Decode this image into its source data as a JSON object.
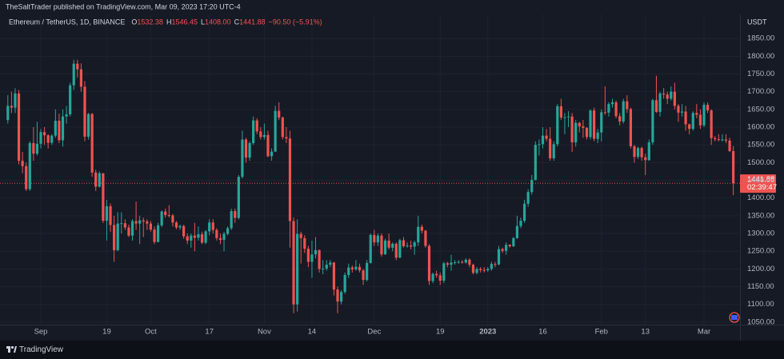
{
  "header": {
    "publisher": "TheSaltTrader published on TradingView.com, Mar 09, 2023 17:20 UTC-4"
  },
  "footer": {
    "brand": "TradingView"
  },
  "chart_data": {
    "type": "candlestick",
    "symbol": "Ethereum / TetherUS, 1D, BINANCE",
    "ohlc_legend": [
      {
        "key": "O",
        "value": "1532.38"
      },
      {
        "key": "H",
        "value": "1546.45"
      },
      {
        "key": "L",
        "value": "1408.00"
      },
      {
        "key": "C",
        "value": "1441.88"
      }
    ],
    "change": "−90.50 (−5.91%)",
    "countdown": "02:39:47",
    "y_unit": "USDT",
    "up_color": "#26a69a",
    "down_color": "#ef5350",
    "grid": true,
    "ylim": [
      1043,
      1918
    ],
    "yticks": [
      {
        "value": 1050,
        "label": "1050.00"
      },
      {
        "value": 1100,
        "label": "1100.00"
      },
      {
        "value": 1150,
        "label": "1150.00"
      },
      {
        "value": 1200,
        "label": "1200.00"
      },
      {
        "value": 1250,
        "label": "1250.00"
      },
      {
        "value": 1300,
        "label": "1300.00"
      },
      {
        "value": 1350,
        "label": "1350.00"
      },
      {
        "value": 1400,
        "label": "1400.00"
      },
      {
        "value": 1450,
        "label": "1450.00"
      },
      {
        "value": 1500,
        "label": "1500.00"
      },
      {
        "value": 1550,
        "label": "1550.00"
      },
      {
        "value": 1600,
        "label": "1600.00"
      },
      {
        "value": 1650,
        "label": "1650.00"
      },
      {
        "value": 1700,
        "label": "1700.00"
      },
      {
        "value": 1750,
        "label": "1750.00"
      },
      {
        "value": 1800,
        "label": "1800.00"
      },
      {
        "value": 1850,
        "label": "1850.00"
      }
    ],
    "categories": [
      null,
      null,
      null,
      null,
      null,
      null,
      null,
      null,
      null,
      "Sep",
      null,
      null,
      null,
      null,
      null,
      null,
      null,
      null,
      null,
      null,
      null,
      null,
      null,
      null,
      null,
      null,
      null,
      "19",
      null,
      null,
      null,
      null,
      null,
      null,
      null,
      null,
      null,
      null,
      null,
      "Oct",
      null,
      null,
      null,
      null,
      null,
      null,
      null,
      null,
      null,
      null,
      null,
      null,
      null,
      null,
      null,
      "17",
      null,
      null,
      null,
      null,
      null,
      null,
      null,
      null,
      null,
      null,
      null,
      null,
      null,
      null,
      "Nov",
      null,
      null,
      null,
      null,
      null,
      null,
      null,
      null,
      null,
      null,
      null,
      null,
      "14",
      null,
      null,
      null,
      null,
      null,
      null,
      null,
      null,
      null,
      null,
      null,
      null,
      null,
      null,
      null,
      null,
      "Dec",
      null,
      null,
      null,
      null,
      null,
      null,
      null,
      null,
      null,
      null,
      null,
      null,
      null,
      null,
      null,
      null,
      null,
      "19",
      null,
      null,
      null,
      null,
      null,
      null,
      null,
      null,
      null,
      null,
      null,
      null,
      "2023",
      null,
      null,
      null,
      null,
      null,
      null,
      null,
      null,
      null,
      null,
      null,
      null,
      null,
      null,
      "16",
      null,
      null,
      null,
      null,
      null,
      null,
      null,
      null,
      null,
      null,
      null,
      null,
      null,
      null,
      null,
      "Feb",
      null,
      null,
      null,
      null,
      null,
      null,
      null,
      null,
      null,
      null,
      null,
      "13",
      null,
      null,
      null,
      null,
      null,
      null,
      null,
      null,
      null,
      null,
      null,
      null,
      null,
      null,
      null,
      "Mar",
      null,
      null,
      null,
      null,
      null,
      null,
      null,
      null
    ],
    "open": [
      1620,
      1660,
      1655,
      1695,
      1505,
      1490,
      1425,
      1555,
      1525,
      1553,
      1586,
      1577,
      1556,
      1576,
      1618,
      1563,
      1630,
      1636,
      1718,
      1779,
      1763,
      1714,
      1573,
      1637,
      1472,
      1432,
      1470,
      1336,
      1377,
      1324,
      1253,
      1328,
      1329,
      1317,
      1294,
      1335,
      1328,
      1337,
      1334,
      1328,
      1311,
      1276,
      1323,
      1362,
      1352,
      1351,
      1331,
      1317,
      1321,
      1292,
      1280,
      1294,
      1288,
      1298,
      1274,
      1306,
      1331,
      1310,
      1287,
      1282,
      1299,
      1315,
      1363,
      1344,
      1460,
      1565,
      1514,
      1555,
      1619,
      1588,
      1572,
      1578,
      1518,
      1531,
      1646,
      1627,
      1572,
      1568,
      1335,
      1100,
      1299,
      1287,
      1257,
      1220,
      1241,
      1253,
      1200,
      1201,
      1212,
      1218,
      1142,
      1108,
      1135,
      1183,
      1204,
      1199,
      1206,
      1196,
      1169,
      1217,
      1296,
      1275,
      1294,
      1241,
      1280,
      1260,
      1271,
      1232,
      1281,
      1264,
      1266,
      1263,
      1275,
      1319,
      1308,
      1265,
      1166,
      1186,
      1182,
      1167,
      1216,
      1212,
      1218,
      1219,
      1220,
      1218,
      1226,
      1212,
      1189,
      1200,
      1197,
      1196,
      1200,
      1214,
      1213,
      1256,
      1251,
      1268,
      1264,
      1287,
      1321,
      1336,
      1384,
      1417,
      1451,
      1550,
      1552,
      1576,
      1567,
      1512,
      1552,
      1659,
      1627,
      1628,
      1630,
      1557,
      1612,
      1602,
      1598,
      1572,
      1647,
      1567,
      1585,
      1642,
      1641,
      1665,
      1670,
      1631,
      1616,
      1673,
      1651,
      1546,
      1516,
      1541,
      1515,
      1507,
      1557,
      1676,
      1643,
      1695,
      1692,
      1680,
      1700,
      1660,
      1641,
      1644,
      1608,
      1595,
      1640,
      1635,
      1605,
      1663,
      1647,
      1569,
      1566,
      1564,
      1565,
      1562,
      1532.38
    ],
    "high": [
      1690,
      1700,
      1710,
      1705,
      1530,
      1500,
      1560,
      1600,
      1615,
      1595,
      1600,
      1580,
      1580,
      1650,
      1638,
      1650,
      1660,
      1725,
      1790,
      1790,
      1780,
      1730,
      1640,
      1640,
      1480,
      1475,
      1470,
      1395,
      1385,
      1350,
      1360,
      1360,
      1340,
      1325,
      1340,
      1390,
      1350,
      1345,
      1340,
      1335,
      1320,
      1330,
      1365,
      1370,
      1380,
      1355,
      1335,
      1325,
      1325,
      1300,
      1300,
      1330,
      1320,
      1305,
      1310,
      1340,
      1340,
      1315,
      1300,
      1305,
      1320,
      1370,
      1370,
      1465,
      1590,
      1570,
      1560,
      1630,
      1625,
      1600,
      1610,
      1590,
      1540,
      1660,
      1670,
      1630,
      1600,
      1590,
      1345,
      1340,
      1305,
      1295,
      1265,
      1280,
      1290,
      1255,
      1225,
      1225,
      1225,
      1220,
      1150,
      1140,
      1190,
      1215,
      1210,
      1225,
      1215,
      1200,
      1225,
      1300,
      1310,
      1300,
      1300,
      1285,
      1300,
      1275,
      1275,
      1285,
      1290,
      1275,
      1280,
      1280,
      1350,
      1325,
      1310,
      1270,
      1190,
      1195,
      1190,
      1220,
      1220,
      1240,
      1225,
      1225,
      1225,
      1230,
      1230,
      1215,
      1205,
      1205,
      1205,
      1205,
      1220,
      1220,
      1265,
      1260,
      1275,
      1270,
      1290,
      1350,
      1345,
      1395,
      1425,
      1465,
      1560,
      1565,
      1600,
      1595,
      1600,
      1560,
      1665,
      1680,
      1640,
      1645,
      1640,
      1620,
      1615,
      1620,
      1600,
      1650,
      1655,
      1595,
      1650,
      1715,
      1670,
      1680,
      1675,
      1640,
      1680,
      1690,
      1655,
      1550,
      1545,
      1545,
      1525,
      1565,
      1680,
      1745,
      1700,
      1710,
      1700,
      1715,
      1725,
      1665,
      1665,
      1660,
      1610,
      1645,
      1665,
      1650,
      1670,
      1670,
      1650,
      1575,
      1580,
      1580,
      1580,
      1570,
      1546.45
    ],
    "low": [
      1610,
      1640,
      1640,
      1495,
      1470,
      1420,
      1420,
      1505,
      1520,
      1540,
      1550,
      1540,
      1550,
      1570,
      1555,
      1545,
      1610,
      1630,
      1705,
      1740,
      1700,
      1560,
      1565,
      1460,
      1420,
      1430,
      1330,
      1280,
      1305,
      1220,
      1250,
      1300,
      1310,
      1290,
      1280,
      1310,
      1270,
      1290,
      1310,
      1305,
      1270,
      1275,
      1318,
      1345,
      1345,
      1320,
      1312,
      1310,
      1285,
      1270,
      1260,
      1250,
      1280,
      1270,
      1270,
      1295,
      1300,
      1280,
      1270,
      1250,
      1295,
      1310,
      1330,
      1340,
      1455,
      1500,
      1505,
      1550,
      1580,
      1565,
      1565,
      1515,
      1505,
      1530,
      1620,
      1565,
      1555,
      1260,
      1075,
      1080,
      1215,
      1245,
      1205,
      1175,
      1230,
      1190,
      1185,
      1195,
      1205,
      1125,
      1075,
      1100,
      1130,
      1175,
      1190,
      1195,
      1190,
      1155,
      1165,
      1215,
      1265,
      1265,
      1235,
      1240,
      1255,
      1250,
      1225,
      1230,
      1260,
      1260,
      1255,
      1240,
      1265,
      1300,
      1260,
      1155,
      1160,
      1175,
      1155,
      1160,
      1205,
      1195,
      1212,
      1215,
      1215,
      1215,
      1205,
      1185,
      1185,
      1190,
      1190,
      1192,
      1195,
      1205,
      1210,
      1245,
      1240,
      1260,
      1262,
      1285,
      1315,
      1330,
      1375,
      1410,
      1450,
      1520,
      1540,
      1560,
      1505,
      1505,
      1545,
      1620,
      1580,
      1600,
      1530,
      1545,
      1585,
      1570,
      1565,
      1565,
      1560,
      1555,
      1560,
      1635,
      1630,
      1655,
      1625,
      1605,
      1610,
      1640,
      1540,
      1500,
      1510,
      1505,
      1465,
      1505,
      1550,
      1640,
      1630,
      1680,
      1665,
      1675,
      1650,
      1615,
      1630,
      1590,
      1580,
      1590,
      1625,
      1595,
      1600,
      1640,
      1550,
      1560,
      1560,
      1560,
      1555,
      1530,
      1408
    ],
    "close": [
      1660,
      1655,
      1695,
      1505,
      1490,
      1425,
      1555,
      1525,
      1553,
      1586,
      1577,
      1556,
      1576,
      1618,
      1563,
      1630,
      1636,
      1718,
      1779,
      1763,
      1714,
      1573,
      1637,
      1472,
      1432,
      1470,
      1336,
      1377,
      1324,
      1253,
      1328,
      1329,
      1317,
      1294,
      1335,
      1328,
      1337,
      1334,
      1328,
      1311,
      1276,
      1323,
      1362,
      1352,
      1351,
      1331,
      1317,
      1321,
      1292,
      1280,
      1294,
      1288,
      1298,
      1274,
      1306,
      1331,
      1310,
      1287,
      1282,
      1299,
      1315,
      1363,
      1344,
      1460,
      1565,
      1514,
      1555,
      1619,
      1588,
      1572,
      1578,
      1518,
      1531,
      1646,
      1627,
      1572,
      1568,
      1335,
      1100,
      1299,
      1287,
      1257,
      1220,
      1241,
      1253,
      1200,
      1201,
      1212,
      1218,
      1142,
      1108,
      1135,
      1183,
      1204,
      1199,
      1206,
      1196,
      1169,
      1217,
      1296,
      1275,
      1294,
      1241,
      1280,
      1260,
      1271,
      1232,
      1281,
      1264,
      1266,
      1263,
      1275,
      1319,
      1308,
      1265,
      1166,
      1186,
      1182,
      1167,
      1216,
      1212,
      1218,
      1219,
      1220,
      1218,
      1226,
      1212,
      1189,
      1200,
      1197,
      1196,
      1200,
      1214,
      1213,
      1256,
      1251,
      1268,
      1264,
      1287,
      1321,
      1336,
      1384,
      1417,
      1451,
      1550,
      1552,
      1576,
      1567,
      1512,
      1552,
      1659,
      1627,
      1628,
      1630,
      1557,
      1612,
      1602,
      1598,
      1572,
      1647,
      1567,
      1585,
      1642,
      1641,
      1665,
      1670,
      1631,
      1616,
      1673,
      1651,
      1546,
      1516,
      1541,
      1515,
      1507,
      1557,
      1676,
      1643,
      1695,
      1692,
      1680,
      1700,
      1660,
      1641,
      1644,
      1608,
      1595,
      1640,
      1635,
      1605,
      1663,
      1647,
      1569,
      1566,
      1564,
      1565,
      1562,
      1532.38,
      1441.88
    ]
  }
}
